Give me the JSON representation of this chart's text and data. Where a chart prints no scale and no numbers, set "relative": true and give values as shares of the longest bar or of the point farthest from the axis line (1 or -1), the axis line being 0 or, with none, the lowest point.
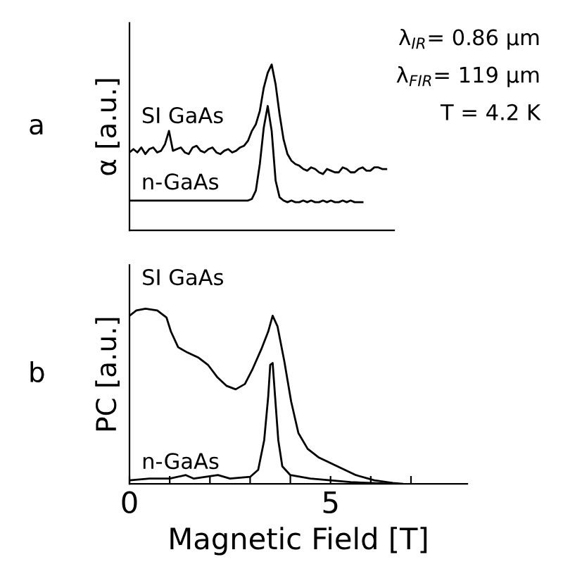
{
  "chart_data": [
    {
      "type": "line",
      "title": "a",
      "ylabel": "α [a.u.]",
      "relative": true,
      "tick_labels": false,
      "legend": false,
      "grid": false,
      "categories": [
        null,
        null,
        null,
        null,
        null,
        null,
        null,
        null,
        null,
        null,
        null,
        null,
        null,
        null,
        null,
        null,
        null,
        null,
        null,
        null,
        null,
        null,
        null,
        null,
        null,
        null,
        null,
        null,
        null,
        null,
        null,
        null,
        null,
        null,
        null,
        null,
        null,
        null,
        null,
        null,
        null,
        null,
        null,
        null,
        null,
        null,
        null,
        null,
        null,
        null,
        null,
        null,
        null,
        null,
        null,
        null,
        null,
        null,
        null,
        null,
        null,
        null,
        null,
        null,
        null,
        null
      ],
      "annotations": [
        "λ$_{IR}$= 0.86 μm",
        "λ$_{FIR}$= 119 μm",
        "T = 4.2 K"
      ],
      "series": [
        {
          "name": "SI GaAs",
          "color": "#000000",
          "values": [
            0.47,
            0.49,
            0.47,
            0.5,
            0.46,
            0.49,
            0.5,
            0.47,
            0.48,
            0.52,
            0.6,
            0.48,
            0.49,
            0.5,
            0.47,
            0.46,
            0.5,
            0.51,
            0.48,
            0.47,
            0.49,
            0.5,
            0.47,
            0.46,
            0.48,
            0.49,
            0.47,
            0.48,
            0.5,
            0.51,
            0.54,
            0.6,
            0.64,
            0.72,
            0.86,
            0.95,
            1.0,
            0.88,
            0.7,
            0.55,
            0.46,
            0.42,
            0.4,
            0.39,
            0.37,
            0.36,
            0.38,
            0.37,
            0.35,
            0.34,
            0.37,
            0.36,
            0.35,
            0.35,
            0.38,
            0.37,
            0.35,
            0.35,
            0.37,
            0.38,
            0.36,
            0.36,
            0.38,
            0.38,
            0.37,
            0.37
          ]
        },
        {
          "name": "n-GaAs",
          "color": "#000000",
          "values": [
            0.18,
            0.18,
            0.18,
            0.18,
            0.18,
            0.18,
            0.18,
            0.18,
            0.18,
            0.18,
            0.18,
            0.18,
            0.18,
            0.18,
            0.18,
            0.18,
            0.18,
            0.18,
            0.18,
            0.18,
            0.18,
            0.18,
            0.18,
            0.18,
            0.18,
            0.18,
            0.18,
            0.18,
            0.18,
            0.18,
            0.18,
            0.19,
            0.24,
            0.4,
            0.62,
            0.75,
            0.6,
            0.3,
            0.2,
            0.18,
            0.17,
            0.18,
            0.17,
            0.17,
            0.18,
            0.17,
            0.18,
            0.17,
            0.17,
            0.18,
            0.17,
            0.18,
            0.17,
            0.17,
            0.18,
            0.17,
            0.18,
            0.17,
            0.17,
            0.17,
            null,
            null,
            null,
            null,
            null,
            null
          ]
        }
      ]
    },
    {
      "type": "line",
      "title": "b",
      "ylabel": "PC [a.u.]",
      "xlabel": "Magnetic Field [T]",
      "relative": true,
      "tick_labels": "x",
      "legend": false,
      "grid": false,
      "xlim": [
        0,
        8.4
      ],
      "xticks": [
        0,
        {
          "value": 1,
          "label": null
        },
        {
          "value": 2,
          "label": null
        },
        {
          "value": 3,
          "label": null
        },
        {
          "value": 4,
          "label": null
        },
        5,
        {
          "value": 6,
          "label": null
        },
        {
          "value": 7,
          "label": null
        }
      ],
      "series": [
        {
          "name": "SI GaAs",
          "color": "#000000",
          "x": [
            0,
            0.17,
            0.4,
            0.69,
            0.92,
            1.03,
            1.21,
            1.44,
            1.72,
            1.95,
            2.18,
            2.41,
            2.64,
            2.87,
            3.05,
            3.28,
            3.45,
            3.56,
            3.68,
            3.85,
            4.02,
            4.2,
            4.43,
            4.71,
            5.17,
            5.63,
            6.09,
            6.55,
            6.78
          ],
          "values": [
            0.96,
            0.99,
            1.0,
            0.99,
            0.95,
            0.87,
            0.78,
            0.75,
            0.72,
            0.68,
            0.61,
            0.56,
            0.54,
            0.57,
            0.65,
            0.77,
            0.87,
            0.96,
            0.9,
            0.7,
            0.47,
            0.29,
            0.2,
            0.15,
            0.1,
            0.05,
            0.02,
            0.005,
            0
          ]
        },
        {
          "name": "n-GaAs",
          "color": "#000000",
          "x": [
            0,
            0.5,
            1.0,
            1.4,
            1.6,
            2.2,
            2.5,
            3.0,
            3.2,
            3.35,
            3.45,
            3.5,
            3.56,
            3.62,
            3.7,
            3.8,
            4.0,
            4.5,
            5,
            5.5,
            6.0,
            6.5
          ],
          "values": [
            0.02,
            0.03,
            0.03,
            0.05,
            0.03,
            0.05,
            0.03,
            0.04,
            0.08,
            0.25,
            0.5,
            0.68,
            0.69,
            0.5,
            0.25,
            0.1,
            0.05,
            0.03,
            0.02,
            0.01,
            0.005,
            0
          ]
        }
      ]
    }
  ]
}
